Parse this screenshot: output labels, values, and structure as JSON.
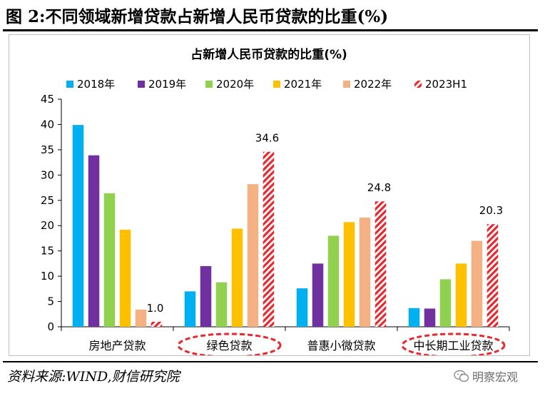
{
  "figure": {
    "title": "图 2:不同领域新增贷款占新增人民币贷款的比重(%)",
    "source": "资料来源:WIND,财信研究院",
    "watermark": "明察宏观"
  },
  "chart_data": {
    "type": "bar",
    "title": "占新增人民币贷款的比重(%)",
    "xlabel": "",
    "ylabel": "",
    "categories": [
      "房地产贷款",
      "绿色贷款",
      "普惠小微贷款",
      "中长期工业贷款"
    ],
    "highlighted_categories": [
      "绿色贷款",
      "中长期工业贷款"
    ],
    "ylim": [
      0,
      45
    ],
    "yticks": [
      0,
      5,
      10,
      15,
      20,
      25,
      30,
      35,
      40,
      45
    ],
    "grid": false,
    "legend_position": "top",
    "series": [
      {
        "name": "2018年",
        "color": "#00B0F0",
        "values": [
          39.9,
          7.0,
          7.6,
          3.7
        ]
      },
      {
        "name": "2019年",
        "color": "#7030A0",
        "values": [
          33.9,
          12.0,
          12.5,
          3.6
        ]
      },
      {
        "name": "2020年",
        "color": "#92D050",
        "values": [
          26.4,
          8.8,
          18.0,
          9.4
        ]
      },
      {
        "name": "2021年",
        "color": "#FFC000",
        "values": [
          19.2,
          19.4,
          20.7,
          12.5
        ]
      },
      {
        "name": "2022年",
        "color": "#F4B183",
        "values": [
          3.4,
          28.2,
          21.6,
          17.0
        ]
      },
      {
        "name": "2023H1",
        "color": "#E8272E",
        "pattern": "hatched",
        "values": [
          1.0,
          34.6,
          24.8,
          20.3
        ]
      }
    ],
    "data_labels": [
      {
        "category": "房地产贷款",
        "series": "2023H1",
        "text": "1.0"
      },
      {
        "category": "绿色贷款",
        "series": "2023H1",
        "text": "34.6"
      },
      {
        "category": "普惠小微贷款",
        "series": "2023H1",
        "text": "24.8"
      },
      {
        "category": "中长期工业贷款",
        "series": "2023H1",
        "text": "20.3"
      }
    ]
  }
}
